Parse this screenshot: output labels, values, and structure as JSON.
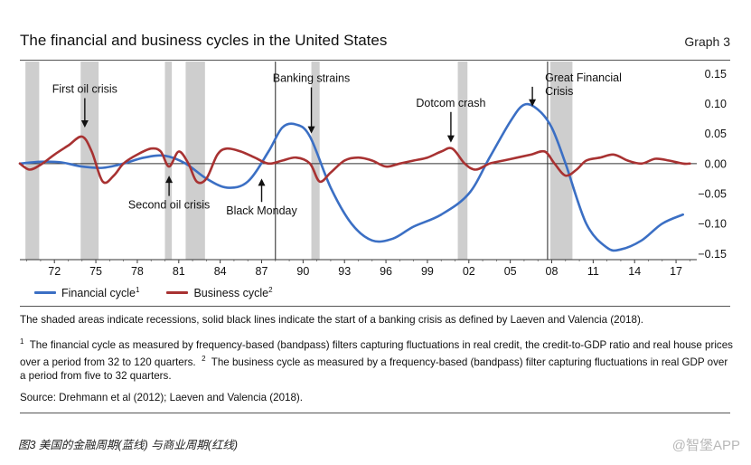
{
  "header": {
    "title": "The financial and business cycles in the United States",
    "graph_label": "Graph 3"
  },
  "legend": {
    "financial_label": "Financial cycle",
    "financial_sup": "1",
    "business_label": "Business cycle",
    "business_sup": "2"
  },
  "notes": {
    "main": "The shaded areas indicate recessions, solid black lines indicate the start of a banking crisis as defined by Laeven and Valencia (2018).",
    "fn1_mark": "1",
    "fn1": "The financial cycle as measured by frequency-based (bandpass) filters capturing fluctuations in real credit, the credit-to-GDP ratio and real house prices over a period from 32 to 120 quarters.",
    "fn2_mark": "2",
    "fn2": "The business cycle as measured by a frequency-based (bandpass) filter capturing fluctuations in real GDP over a period from five to 32 quarters.",
    "source": "Source: Drehmann et al (2012); Laeven and Valencia (2018)."
  },
  "caption": "图3 美国的金融周期(蓝线) 与商业周期(红线)",
  "watermark": "@智堡APP",
  "colors": {
    "financial": "#3b6fc4",
    "business": "#a83232",
    "recession": "#bdbdbd",
    "crisis_line": "#222222"
  },
  "chart_data": {
    "type": "line",
    "x_tick_labels": [
      "72",
      "75",
      "78",
      "81",
      "84",
      "87",
      "90",
      "93",
      "96",
      "99",
      "02",
      "05",
      "08",
      "11",
      "14",
      "17"
    ],
    "x_ticks": [
      1972,
      1975,
      1978,
      1981,
      1984,
      1987,
      1990,
      1993,
      1996,
      1999,
      2002,
      2005,
      2008,
      2011,
      2014,
      2017
    ],
    "xlim": [
      1969.5,
      2018.5
    ],
    "ylim": [
      -0.16,
      0.17
    ],
    "y_ticks": [
      0.15,
      0.1,
      0.05,
      0.0,
      -0.05,
      -0.1,
      -0.15
    ],
    "y_tick_labels": [
      "0.15",
      "0.10",
      "0.05",
      "0.00",
      "−0.05",
      "−0.10",
      "−0.15"
    ],
    "y_axis_side": "right",
    "recessions": [
      [
        1969.9,
        1970.9
      ],
      [
        1973.9,
        1975.2
      ],
      [
        1980.0,
        1980.5
      ],
      [
        1981.5,
        1982.9
      ],
      [
        1990.6,
        1991.2
      ],
      [
        2001.2,
        2001.9
      ],
      [
        2007.9,
        2009.5
      ]
    ],
    "banking_crises": [
      1988.0,
      2007.7
    ],
    "annotations": [
      {
        "text": "First oil crisis",
        "x": 1974.2,
        "y": 0.06,
        "label_y": 0.118,
        "arrow": "down"
      },
      {
        "text": "Second oil crisis",
        "x": 1980.3,
        "y": -0.02,
        "label_y": -0.075,
        "arrow": "up"
      },
      {
        "text": "Black Monday",
        "x": 1987.0,
        "y": -0.025,
        "label_y": -0.085,
        "arrow": "up"
      },
      {
        "text": "Banking strains",
        "x": 1990.6,
        "y": 0.05,
        "label_y": 0.136,
        "arrow": "down"
      },
      {
        "text": "Dotcom crash",
        "x": 2000.7,
        "y": 0.035,
        "label_y": 0.095,
        "arrow": "down"
      },
      {
        "text": "Great Financial",
        "x": 2006.6,
        "y": 0.095,
        "label_y": 0.137,
        "arrow": "down"
      },
      {
        "text": "Crisis",
        "x": 2006.6,
        "y": 0.095,
        "label_y": 0.114,
        "arrow": "none"
      }
    ],
    "series": [
      {
        "name": "Financial cycle",
        "x": [
          1969.5,
          1971,
          1972.5,
          1974,
          1975.5,
          1977,
          1978.5,
          1980,
          1981.5,
          1983,
          1984.5,
          1986,
          1987.5,
          1988.5,
          1989.5,
          1990.5,
          1992,
          1993.5,
          1995,
          1996.5,
          1998,
          2000,
          2002,
          2003.5,
          2005,
          2006,
          2007,
          2008,
          2009,
          2010.5,
          2012,
          2013,
          2014.5,
          2016,
          2017.5
        ],
        "values": [
          0.0,
          0.003,
          0.002,
          -0.005,
          -0.007,
          0.0,
          0.01,
          0.013,
          0.0,
          -0.025,
          -0.04,
          -0.03,
          0.02,
          0.06,
          0.065,
          0.045,
          -0.04,
          -0.1,
          -0.128,
          -0.125,
          -0.105,
          -0.085,
          -0.05,
          0.01,
          0.07,
          0.098,
          0.09,
          0.06,
          0.0,
          -0.1,
          -0.14,
          -0.143,
          -0.128,
          -0.1,
          -0.085
        ]
      },
      {
        "name": "Business cycle",
        "x": [
          1969.5,
          1970.2,
          1971,
          1972,
          1973,
          1974,
          1974.7,
          1975.5,
          1976.3,
          1977,
          1978,
          1979,
          1979.7,
          1980.3,
          1981,
          1981.7,
          1982.3,
          1983,
          1983.8,
          1984.5,
          1985.5,
          1986.5,
          1987.5,
          1988.5,
          1989.5,
          1990.5,
          1991.2,
          1992,
          1993,
          1994,
          1995,
          1996,
          1997,
          1998,
          1999,
          2000,
          2000.8,
          2001.7,
          2002.5,
          2003.5,
          2004.5,
          2005.5,
          2006.5,
          2007.5,
          2008.2,
          2009,
          2009.8,
          2010.5,
          2011.5,
          2012.5,
          2013.5,
          2014.5,
          2015.5,
          2016.5,
          2017.5,
          2018
        ],
        "values": [
          0.0,
          -0.01,
          -0.002,
          0.015,
          0.03,
          0.045,
          0.02,
          -0.03,
          -0.02,
          0.0,
          0.015,
          0.025,
          0.02,
          -0.005,
          0.02,
          0.0,
          -0.03,
          -0.025,
          0.015,
          0.025,
          0.02,
          0.01,
          0.0,
          0.005,
          0.01,
          0.0,
          -0.03,
          -0.015,
          0.005,
          0.01,
          0.005,
          -0.005,
          0.0,
          0.005,
          0.01,
          0.02,
          0.025,
          0.0,
          -0.01,
          0.0,
          0.005,
          0.01,
          0.015,
          0.02,
          0.0,
          -0.02,
          -0.01,
          0.005,
          0.01,
          0.015,
          0.005,
          0.0,
          0.008,
          0.005,
          0.0,
          0.0
        ]
      }
    ]
  }
}
